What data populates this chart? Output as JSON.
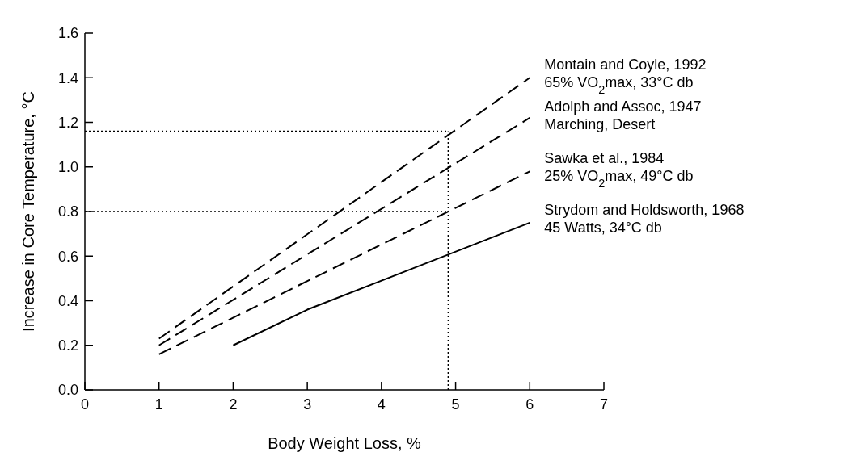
{
  "chart_data": {
    "type": "line",
    "xlabel": "Body Weight Loss, %",
    "ylabel": "Increase in Core Temperature, °C",
    "xlim": [
      0,
      7
    ],
    "xticks": [
      0,
      1,
      2,
      3,
      4,
      5,
      6,
      7
    ],
    "ylim": [
      0,
      1.6
    ],
    "yticks": [
      {
        "value": 0,
        "label": "0.0"
      },
      {
        "value": 0.2,
        "label": "0.2"
      },
      {
        "value": 0.4,
        "label": "0.4"
      },
      {
        "value": 0.6,
        "label": "0.6"
      },
      {
        "value": 0.8,
        "label": "0.8"
      },
      {
        "value": 1,
        "label": "1.0"
      },
      {
        "value": 1.2,
        "label": "1.2"
      },
      {
        "value": 1.4,
        "label": "1.4"
      },
      {
        "value": 1.6,
        "label": "1.6"
      }
    ],
    "grid": false,
    "marker": "none",
    "series": [
      {
        "name": "Montain and Coyle, 1992\n65% VO$_{2}$max, 33°C db",
        "color": "#000000",
        "line_style": "dashed",
        "x": [
          1,
          6
        ],
        "values": [
          0.23,
          1.4
        ]
      },
      {
        "name": "Adolph and Assoc, 1947\nMarching, Desert",
        "color": "#000000",
        "line_style": "dashed",
        "x": [
          1,
          6
        ],
        "values": [
          0.2,
          1.22
        ]
      },
      {
        "name": "Sawka et al., 1984\n25% VO$_{2}$max, 49°C db",
        "color": "#000000",
        "line_style": "dashed",
        "x": [
          1,
          6
        ],
        "values": [
          0.16,
          0.98
        ]
      },
      {
        "name": "Strydom and Holdsworth, 1968\n45 Watts, 34°C db",
        "color": "#000000",
        "line_style": "solid",
        "x": [
          2,
          3,
          6
        ],
        "values": [
          0.2,
          0.36,
          0.75
        ]
      }
    ],
    "ref_lines": [
      {
        "axis": "y",
        "value": 1.16,
        "line_style": "dotted",
        "color": "#000000"
      },
      {
        "axis": "y",
        "value": 0.8,
        "line_style": "dotted",
        "color": "#000000"
      },
      {
        "axis": "x",
        "value": 4.9,
        "line_style": "dotted",
        "color": "#000000"
      }
    ]
  }
}
